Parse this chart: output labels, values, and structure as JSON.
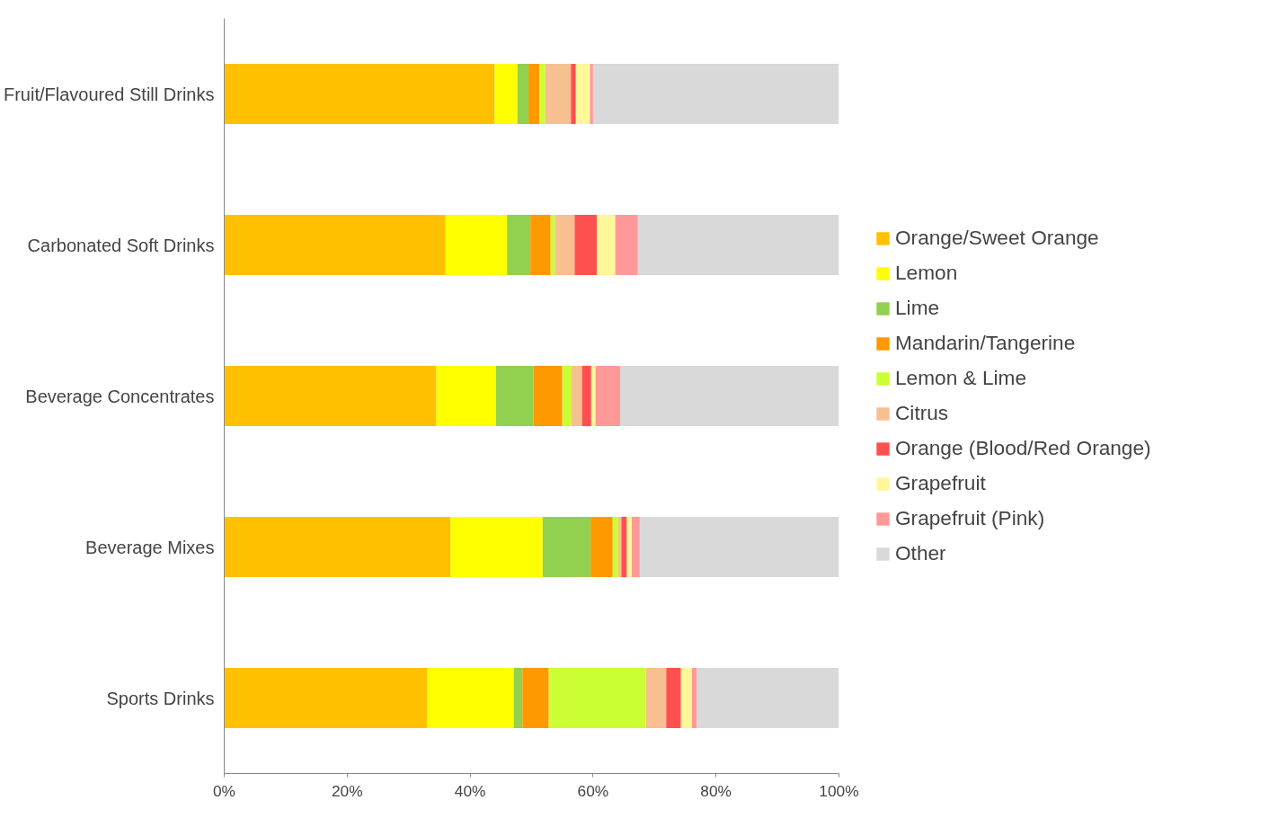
{
  "chart_data": {
    "type": "bar",
    "orientation": "horizontal",
    "stacked": true,
    "categories": [
      "Fruit/Flavoured Still Drinks",
      "Carbonated Soft Drinks",
      "Beverage Concentrates",
      "Beverage Mixes",
      "Sports Drinks"
    ],
    "series": [
      {
        "name": "Orange/Sweet Orange",
        "color": "#ffc000",
        "values": [
          44.0,
          36.0,
          34.5,
          36.8,
          33.0
        ]
      },
      {
        "name": "Lemon",
        "color": "#ffff00",
        "values": [
          3.7,
          10.0,
          9.7,
          15.0,
          14.1
        ]
      },
      {
        "name": "Lime",
        "color": "#92d050",
        "values": [
          1.8,
          3.8,
          6.1,
          7.8,
          1.4
        ]
      },
      {
        "name": "Mandarin/Tangerine",
        "color": "#ff9900",
        "values": [
          1.8,
          3.3,
          4.7,
          3.6,
          4.3
        ]
      },
      {
        "name": "Lemon & Lime",
        "color": "#ccff33",
        "values": [
          0.9,
          0.7,
          1.5,
          0.9,
          15.8
        ]
      },
      {
        "name": "Citrus",
        "color": "#f8c090",
        "values": [
          4.2,
          3.2,
          1.7,
          0.5,
          3.3
        ]
      },
      {
        "name": "Orange (Blood/Red Orange)",
        "color": "#ff5050",
        "values": [
          0.8,
          3.6,
          1.5,
          0.9,
          2.4
        ]
      },
      {
        "name": "Grapefruit",
        "color": "#fff799",
        "values": [
          2.3,
          3.0,
          0.7,
          0.8,
          1.8
        ]
      },
      {
        "name": "Grapefruit (Pink)",
        "color": "#ff9999",
        "values": [
          0.5,
          3.7,
          4.0,
          1.3,
          0.8
        ]
      },
      {
        "name": "Other",
        "color": "#d9d9d9",
        "values": [
          40.0,
          32.7,
          35.6,
          32.4,
          23.1
        ]
      }
    ],
    "xlim": [
      0,
      100
    ],
    "xticks": [
      {
        "value": 0,
        "label": "0%"
      },
      {
        "value": 20,
        "label": "20%"
      },
      {
        "value": 40,
        "label": "40%"
      },
      {
        "value": 60,
        "label": "60%"
      },
      {
        "value": 80,
        "label": "80%"
      },
      {
        "value": 100,
        "label": "100%"
      }
    ],
    "grid": false,
    "legend": "right"
  }
}
